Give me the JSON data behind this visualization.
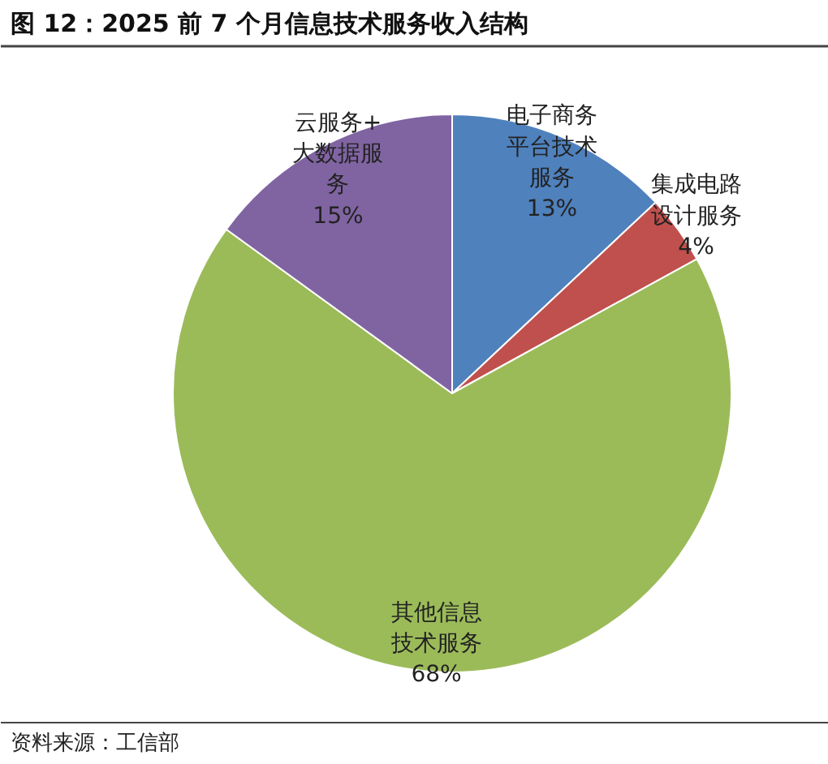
{
  "chart_data": {
    "type": "pie",
    "title": "图 12：2025 前 7 个月信息技术服务收入结构",
    "categories": [
      "电子商务平台技术服务",
      "集成电路设计服务",
      "其他信息技术服务",
      "云服务+大数据服务"
    ],
    "values": [
      13,
      4,
      68,
      15
    ],
    "value_labels": [
      "13%",
      "4%",
      "68%",
      "15%"
    ],
    "colors": [
      "#4f81bd",
      "#c0504d",
      "#9bbb59",
      "#8064a2"
    ],
    "annotations": [
      "资料来源：工信部"
    ],
    "legend": false
  }
}
